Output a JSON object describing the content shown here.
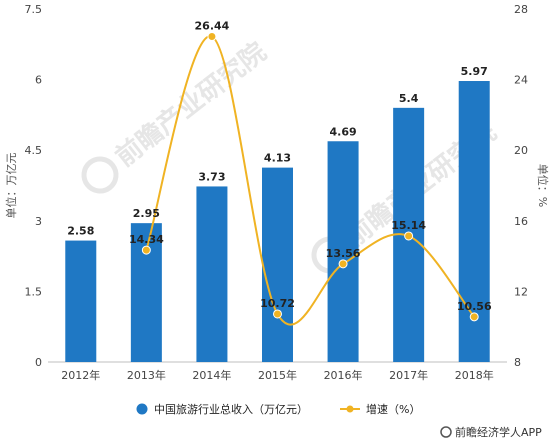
{
  "chart_data": {
    "type": "bar+line",
    "categories": [
      "2012年",
      "2013年",
      "2014年",
      "2015年",
      "2016年",
      "2017年",
      "2018年"
    ],
    "series": [
      {
        "name": "中国旅游行业总收入（万亿元）",
        "type": "bar",
        "axis": "left",
        "values": [
          2.58,
          2.95,
          3.73,
          4.13,
          4.69,
          5.4,
          5.97
        ],
        "labels": [
          "2.58",
          "2.95",
          "3.73",
          "4.13",
          "4.69",
          "5.4",
          "5.97"
        ],
        "color": "#1f78c4"
      },
      {
        "name": "增速（%）",
        "type": "line",
        "axis": "right",
        "x": [
          "2013年",
          "2014年",
          "2015年",
          "2016年",
          "2017年",
          "2018年"
        ],
        "values": [
          14.34,
          26.44,
          10.72,
          13.56,
          15.14,
          10.56
        ],
        "labels": [
          "14.34",
          "26.44",
          "10.72",
          "13.56",
          "15.14",
          "10.56"
        ],
        "color": "#f0b323"
      }
    ],
    "y_left": {
      "label": "单位：万亿元",
      "ylim": [
        0,
        7.5
      ],
      "ticks": [
        0,
        1.5,
        3,
        4.5,
        6,
        7.5
      ],
      "tick_labels": [
        "0",
        "1.5",
        "3",
        "4.5",
        "6",
        "7.5"
      ]
    },
    "y_right": {
      "label": "单位：%",
      "ylim": [
        8,
        28
      ],
      "ticks": [
        8,
        12,
        16,
        20,
        24,
        28
      ],
      "tick_labels": [
        "8",
        "12",
        "16",
        "20",
        "24",
        "28"
      ]
    },
    "grid": false,
    "legend": "bottom",
    "watermark": "前瞻产业研究院",
    "source": "前瞻经济学人APP"
  }
}
